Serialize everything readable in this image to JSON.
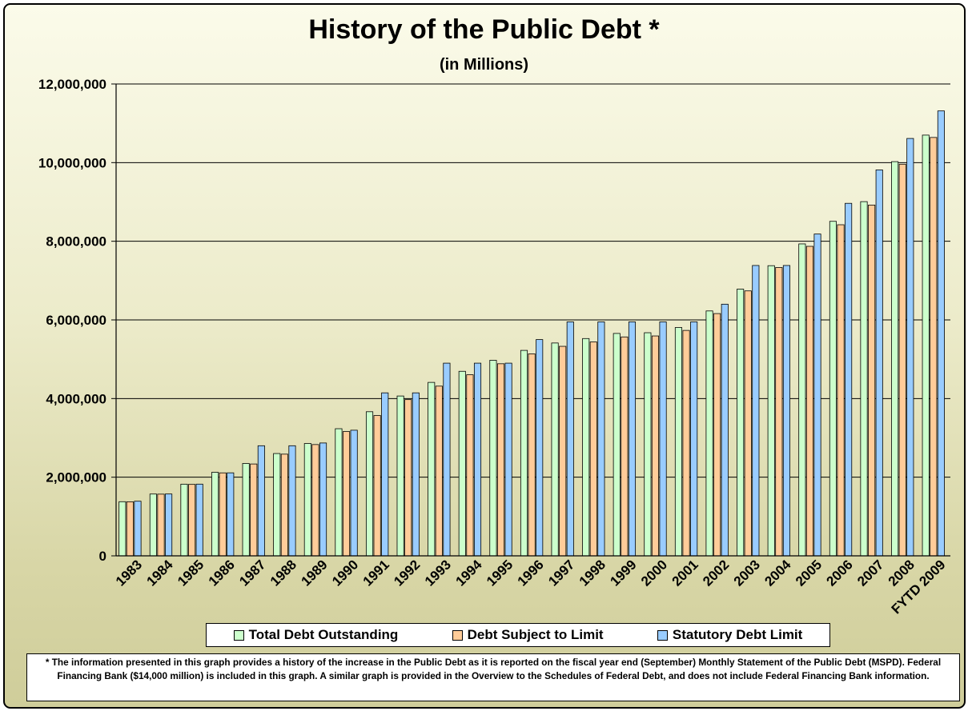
{
  "chart_data": {
    "type": "bar",
    "title": "History of the Public Debt *",
    "subtitle": "(in Millions)",
    "categories": [
      "1983",
      "1984",
      "1985",
      "1986",
      "1987",
      "1988",
      "1989",
      "1990",
      "1991",
      "1992",
      "1993",
      "1994",
      "1995",
      "1996",
      "1997",
      "1998",
      "1999",
      "2000",
      "2001",
      "2002",
      "2003",
      "2004",
      "2005",
      "2006",
      "2007",
      "2008",
      "FYTD 2009"
    ],
    "series": [
      {
        "name": "Total Debt Outstanding",
        "color": "#ccffcc",
        "values": [
          1377000,
          1572000,
          1823000,
          2125000,
          2350000,
          2602000,
          2857000,
          3233000,
          3665000,
          4065000,
          4411000,
          4693000,
          4974000,
          5225000,
          5413000,
          5526000,
          5656000,
          5674000,
          5807000,
          6228000,
          6783000,
          7379000,
          7933000,
          8507000,
          9008000,
          10025000,
          10700000
        ]
      },
      {
        "name": "Debt Subject to Limit",
        "color": "#ffcc99",
        "values": [
          1375000,
          1569000,
          1817000,
          2110000,
          2336000,
          2586000,
          2830000,
          3161000,
          3569000,
          3973000,
          4316000,
          4605000,
          4885000,
          5137000,
          5328000,
          5440000,
          5567000,
          5592000,
          5733000,
          6161000,
          6738000,
          7333000,
          7871000,
          8420000,
          8921000,
          9960000,
          10640000
        ]
      },
      {
        "name": "Statutory Debt Limit",
        "color": "#99ccff",
        "values": [
          1389000,
          1573000,
          1824000,
          2111000,
          2800000,
          2800000,
          2870000,
          3195000,
          4145000,
          4145000,
          4900000,
          4900000,
          4900000,
          5500000,
          5950000,
          5950000,
          5950000,
          5950000,
          5950000,
          6400000,
          7384000,
          7384000,
          8184000,
          8965000,
          9815000,
          10615000,
          11315000
        ]
      }
    ],
    "xlabel": "",
    "ylabel": "",
    "ylim": [
      0,
      12000000
    ],
    "yticks": [
      "0",
      "2,000,000",
      "4,000,000",
      "6,000,000",
      "8,000,000",
      "10,000,000",
      "12,000,000"
    ],
    "grid": true,
    "legend_position": "bottom"
  },
  "footnote": "*  The information presented in this graph provides a history of the increase in the Public Debt as it is reported on the fiscal year end (September) Monthly Statement of the Public Debt (MSPD).  Federal Financing Bank ($14,000 million) is included in this graph.  A similar graph is provided in the Overview to the Schedules of Federal Debt, and does not include Federal Financing Bank information."
}
